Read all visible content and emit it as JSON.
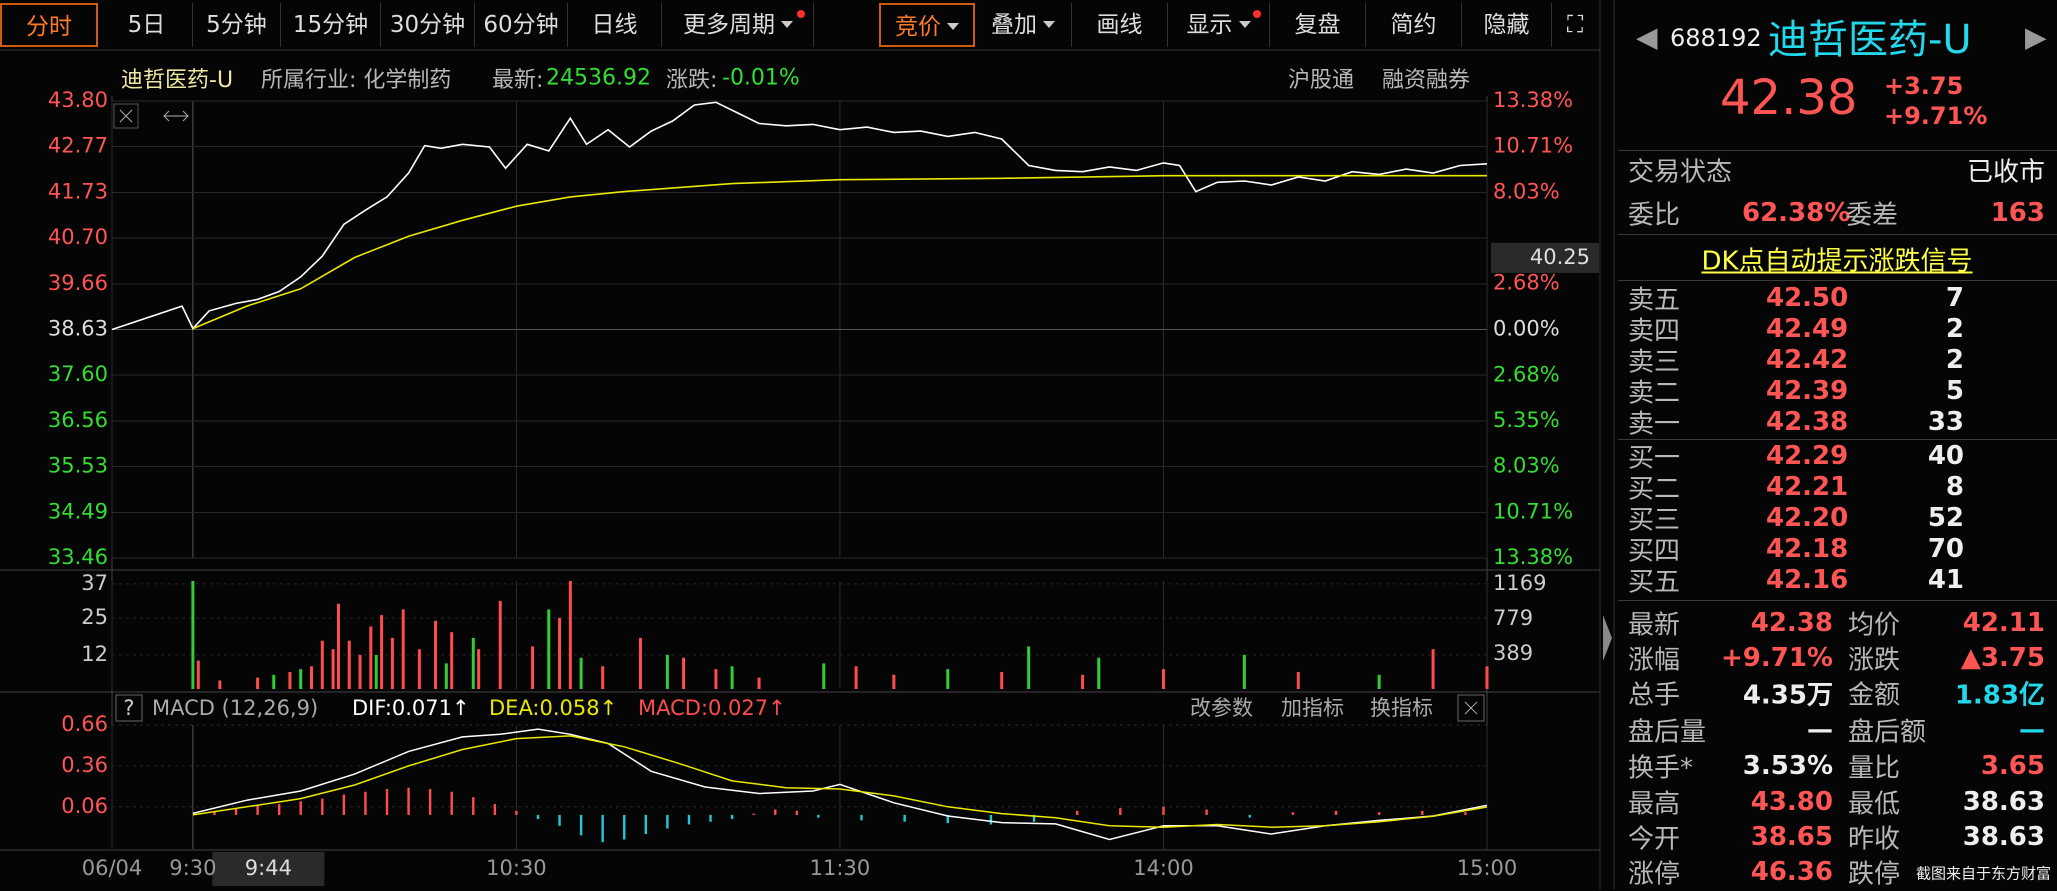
{
  "toolbar": {
    "periods": [
      "分时",
      "5日",
      "5分钟",
      "15分钟",
      "30分钟",
      "60分钟",
      "日线",
      "更多周期"
    ],
    "tools": [
      "竞价",
      "叠加",
      "画线",
      "显示",
      "复盘",
      "简约",
      "隐藏"
    ]
  },
  "info_bar": {
    "name": "迪哲医药-U",
    "industry": "所属行业: 化学制药",
    "latest_label": "最新:",
    "latest": "24536.92",
    "change_label": "涨跌:",
    "change": "-0.01%",
    "tags": [
      "沪股通",
      "融资融券"
    ]
  },
  "macd_toolbar": [
    "改参数",
    "加指标",
    "换指标"
  ],
  "chart_data": [
    {
      "type": "line",
      "ylim": [
        33.46,
        43.8
      ],
      "yticks": [
        {
          "value": 43.8,
          "label": "43.80"
        },
        42.77,
        41.73,
        {
          "value": 40.7,
          "label": "40.70"
        },
        39.66,
        38.63,
        {
          "value": 37.6,
          "label": "37.60"
        },
        36.56,
        35.53,
        34.49,
        33.46
      ],
      "y2lim": [
        -13.38,
        13.38
      ],
      "y2ticks": [
        {
          "value": 13.38,
          "label": "13.38%"
        },
        {
          "value": 10.71,
          "label": "10.71%"
        },
        {
          "value": 8.03,
          "label": "8.03%"
        },
        {
          "value": 2.68,
          "label": "2.68%"
        },
        {
          "value": 0,
          "label": "0.00%"
        },
        {
          "value": -2.68,
          "label": "2.68%"
        },
        {
          "value": -5.35,
          "label": "5.35%"
        },
        {
          "value": -8.03,
          "label": "8.03%"
        },
        {
          "value": -10.71,
          "label": "10.71%"
        },
        {
          "value": -13.38,
          "label": "13.38%"
        }
      ],
      "cursor": {
        "value": 40.25,
        "label": "40.25"
      },
      "xlim": [
        -15,
        240
      ],
      "grid": true,
      "series": [
        {
          "color": "#ffffff",
          "x": [
            -15,
            -2,
            0,
            3,
            8,
            12,
            16,
            20,
            24,
            28,
            32,
            36,
            40,
            43,
            46,
            50,
            55,
            58,
            62,
            66,
            70,
            73,
            77,
            81,
            85,
            89,
            93,
            97,
            101,
            105,
            110,
            115,
            120,
            125,
            130,
            135,
            140,
            145,
            150,
            155,
            160,
            165,
            170,
            175,
            180,
            183,
            186,
            190,
            195,
            200,
            205,
            210,
            215,
            220,
            225,
            230,
            235,
            240
          ],
          "values": [
            38.63,
            39.16,
            38.65,
            39.05,
            39.22,
            39.31,
            39.49,
            39.82,
            40.29,
            41.01,
            41.33,
            41.63,
            42.17,
            42.79,
            42.73,
            42.82,
            42.76,
            42.28,
            42.82,
            42.67,
            43.41,
            42.82,
            43.15,
            42.76,
            43.12,
            43.35,
            43.71,
            43.77,
            43.53,
            43.29,
            43.24,
            43.27,
            43.15,
            43.21,
            43.09,
            43.12,
            43.0,
            43.09,
            42.94,
            42.34,
            42.23,
            42.2,
            42.31,
            42.23,
            42.4,
            42.34,
            41.75,
            41.96,
            41.99,
            41.9,
            42.08,
            41.99,
            42.2,
            42.14,
            42.26,
            42.17,
            42.34,
            42.38
          ]
        },
        {
          "color": "#e8e800",
          "x": [
            0,
            10,
            20,
            30,
            40,
            50,
            60,
            70,
            80,
            100,
            120,
            150,
            180,
            210,
            240
          ],
          "values": [
            38.65,
            39.16,
            39.55,
            40.26,
            40.74,
            41.1,
            41.42,
            41.63,
            41.75,
            41.93,
            42.02,
            42.05,
            42.11,
            42.11,
            42.11
          ]
        }
      ]
    },
    {
      "type": "bar",
      "ylim": [
        0,
        38
      ],
      "yticks": [
        37,
        25,
        12
      ],
      "y2lim": [
        0,
        1200
      ],
      "y2ticks": [
        1169,
        779,
        389
      ],
      "xlim": [
        -15,
        240
      ],
      "series": [
        {
          "color": "#ff4d4d",
          "x": [
            1,
            5,
            12,
            18,
            22,
            24,
            26,
            27,
            29,
            31,
            33,
            35,
            37,
            39,
            42,
            45,
            48,
            53,
            57,
            63,
            68,
            70,
            76,
            83,
            91,
            97,
            105,
            123,
            130,
            150,
            165,
            180,
            205,
            230,
            240
          ],
          "values": [
            10,
            3,
            4,
            6,
            8,
            17,
            14,
            30,
            17,
            12,
            22,
            26,
            18,
            28,
            14,
            24,
            20,
            14,
            31,
            15,
            25,
            38,
            8,
            18,
            11,
            7,
            4,
            8,
            5,
            6,
            5,
            7,
            6,
            14,
            8
          ]
        },
        {
          "color": "#33cc33",
          "x": [
            0,
            15,
            20,
            34,
            47,
            52,
            66,
            72,
            88,
            100,
            117,
            140,
            155,
            168,
            195,
            220
          ],
          "values": [
            38,
            5,
            7,
            12,
            9,
            18,
            28,
            11,
            12,
            8,
            9,
            7,
            15,
            11,
            12,
            5
          ]
        }
      ]
    },
    {
      "type": "macd",
      "title": "MACD (12,26,9)",
      "ylim": [
        -0.25,
        0.66
      ],
      "yticks": [
        0.66,
        0.36,
        0.06
      ],
      "xlim": [
        -15,
        240
      ],
      "xticks": [
        {
          "value": -15,
          "label": "06/04"
        },
        {
          "value": 0,
          "label": "9:30"
        },
        {
          "value": 60,
          "label": "10:30"
        },
        {
          "value": 120,
          "label": "11:30"
        },
        {
          "value": 180,
          "label": "14:00"
        },
        {
          "value": 240,
          "label": "15:00"
        }
      ],
      "x_cursor": {
        "value": 14,
        "label": "9:44"
      },
      "series": [
        {
          "name": "DIF:0.071↑",
          "color": "#ffffff",
          "x": [
            0,
            10,
            20,
            30,
            40,
            50,
            57,
            64,
            70,
            77,
            85,
            95,
            105,
            115,
            120,
            130,
            140,
            150,
            160,
            170,
            180,
            190,
            200,
            210,
            220,
            230,
            240
          ],
          "values": [
            0.011,
            0.108,
            0.176,
            0.3,
            0.466,
            0.573,
            0.592,
            0.63,
            0.592,
            0.524,
            0.32,
            0.205,
            0.157,
            0.176,
            0.224,
            0.089,
            -0.008,
            -0.056,
            -0.066,
            -0.18,
            -0.08,
            -0.08,
            -0.14,
            -0.08,
            -0.04,
            -0.008,
            0.071
          ]
        },
        {
          "name": "DEA:0.058↑",
          "color": "#e8e800",
          "x": [
            0,
            10,
            20,
            30,
            40,
            50,
            60,
            70,
            80,
            90,
            100,
            110,
            120,
            130,
            140,
            150,
            160,
            170,
            180,
            190,
            200,
            210,
            220,
            230,
            240
          ],
          "values": [
            0.0,
            0.06,
            0.12,
            0.22,
            0.36,
            0.48,
            0.56,
            0.58,
            0.5,
            0.38,
            0.25,
            0.2,
            0.19,
            0.14,
            0.06,
            0.01,
            -0.02,
            -0.08,
            -0.09,
            -0.07,
            -0.09,
            -0.08,
            -0.05,
            -0.01,
            0.058
          ]
        }
      ],
      "histogram": {
        "name": "MACD:0.027↑",
        "up_color": "#ff4d4d",
        "down_color": "#20c8d8",
        "x": [
          4,
          8,
          12,
          16,
          20,
          24,
          28,
          32,
          36,
          40,
          44,
          48,
          52,
          56,
          60,
          64,
          68,
          72,
          76,
          80,
          84,
          88,
          92,
          96,
          100,
          104,
          108,
          112,
          116,
          124,
          132,
          140,
          148,
          156,
          164,
          172,
          180,
          188,
          196,
          204,
          212,
          220,
          228,
          236
        ],
        "values": [
          0.03,
          0.05,
          0.07,
          0.08,
          0.1,
          0.12,
          0.15,
          0.17,
          0.19,
          0.2,
          0.19,
          0.17,
          0.13,
          0.08,
          0.03,
          -0.03,
          -0.08,
          -0.15,
          -0.2,
          -0.18,
          -0.14,
          -0.1,
          -0.07,
          -0.05,
          -0.03,
          0.01,
          0.04,
          0.03,
          -0.02,
          -0.04,
          -0.05,
          -0.06,
          -0.07,
          -0.05,
          0.03,
          0.05,
          0.06,
          0.04,
          -0.02,
          0.02,
          0.03,
          0.02,
          0.03,
          0.02
        ]
      }
    }
  ],
  "quote_panel": {
    "code": "688192",
    "name": "迪哲医药-U",
    "price": "42.38",
    "change": "+3.75",
    "change_pct": "+9.71%",
    "status_label": "交易状态",
    "status": "已收市",
    "ratio_label": "委比",
    "ratio": "62.38%",
    "diff_label": "委差",
    "diff": "163",
    "signal_link": "DK点自动提示涨跌信号",
    "asks": [
      {
        "label": "卖五",
        "price": "42.50",
        "volume": "7"
      },
      {
        "label": "卖四",
        "price": "42.49",
        "volume": "2"
      },
      {
        "label": "卖三",
        "price": "42.42",
        "volume": "2"
      },
      {
        "label": "卖二",
        "price": "42.39",
        "volume": "5"
      },
      {
        "label": "卖一",
        "price": "42.38",
        "volume": "33"
      }
    ],
    "bids": [
      {
        "label": "买一",
        "price": "42.29",
        "volume": "40"
      },
      {
        "label": "买二",
        "price": "42.21",
        "volume": "8"
      },
      {
        "label": "买三",
        "price": "42.20",
        "volume": "52"
      },
      {
        "label": "买四",
        "price": "42.18",
        "volume": "70"
      },
      {
        "label": "买五",
        "price": "42.16",
        "volume": "41"
      }
    ],
    "stats": [
      [
        "最新",
        "42.38",
        "均价",
        "42.11"
      ],
      [
        "涨幅",
        "+9.71%",
        "涨跌",
        "▲3.75"
      ],
      [
        "总手",
        "4.35万",
        "金额",
        "1.83亿"
      ],
      [
        "盘后量",
        "—",
        "盘后额",
        "—"
      ],
      [
        "换手*",
        "3.53%",
        "量比",
        "3.65"
      ],
      [
        "最高",
        "43.80",
        "最低",
        "38.63"
      ],
      [
        "今开",
        "38.65",
        "昨收",
        "38.63"
      ],
      [
        "涨停",
        "46.36",
        "跌停"
      ]
    ]
  },
  "watermark": "截图来自于东方财富"
}
